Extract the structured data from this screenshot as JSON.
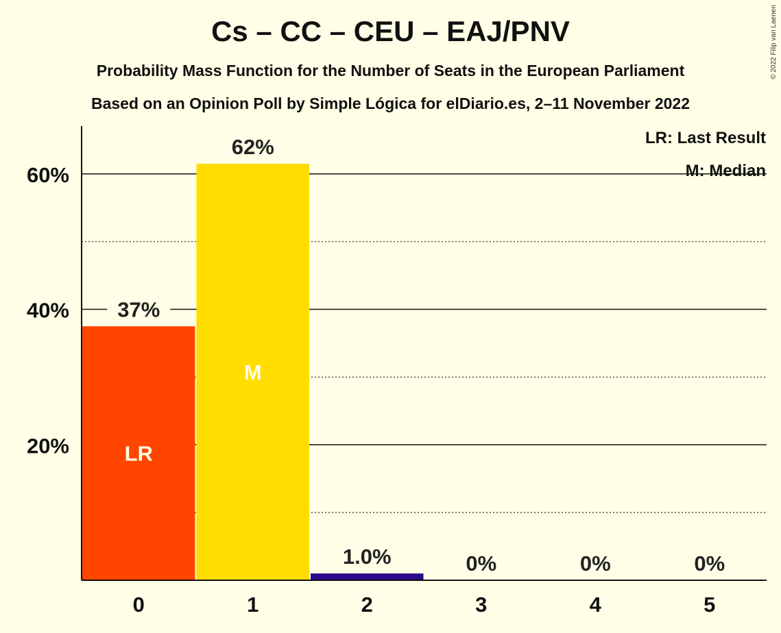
{
  "chart_data": {
    "type": "bar",
    "title": "Cs – CC – CEU – EAJ/PNV",
    "subtitle": "Probability Mass Function for the Number of Seats in the European Parliament",
    "subtitle2": "Based on an Opinion Poll by Simple Lógica for elDiario.es, 2–11 November 2022",
    "copyright": "© 2022 Filip van Laenen",
    "categories": [
      "0",
      "1",
      "2",
      "3",
      "4",
      "5"
    ],
    "values": [
      37.5,
      61.5,
      1.0,
      0,
      0,
      0
    ],
    "value_labels": [
      "37%",
      "62%",
      "1.0%",
      "0%",
      "0%",
      "0%"
    ],
    "bar_colors": [
      "#FF4500",
      "#FFDD00",
      "#2E0A8A",
      "#FF4500",
      "#FF4500",
      "#FF4500"
    ],
    "inner_labels": [
      "LR",
      "M",
      "",
      "",
      "",
      ""
    ],
    "ylim": [
      0,
      67
    ],
    "y_ticks": [
      20,
      40,
      60
    ],
    "y_tick_labels": [
      "20%",
      "40%",
      "60%"
    ],
    "minor_gridlines": [
      10,
      30,
      50
    ],
    "xlabel": "",
    "ylabel": "",
    "legend": {
      "placement": "top-right",
      "entries": [
        "LR: Last Result",
        "M: Median"
      ]
    },
    "background_color": "#FFFEE6"
  }
}
